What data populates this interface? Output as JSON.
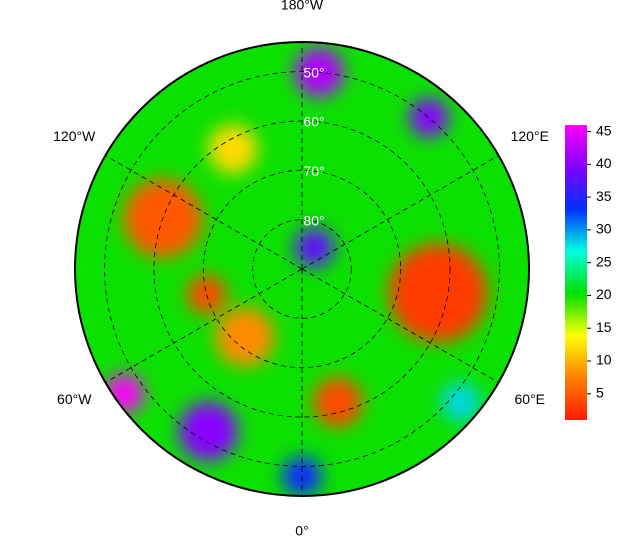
{
  "map": {
    "projection": "north-polar-stereographic",
    "boundary_lat": 44,
    "background_value": 20,
    "field": [
      {
        "lat": 62,
        "lon": 80,
        "radius_deg": 10,
        "value": 3
      },
      {
        "lat": 60,
        "lon": -110,
        "radius_deg": 8,
        "value": 5
      },
      {
        "lat": 72,
        "lon": -40,
        "radius_deg": 6,
        "value": 8
      },
      {
        "lat": 85,
        "lon": 150,
        "radius_deg": 4,
        "value": 38
      },
      {
        "lat": 62,
        "lon": 15,
        "radius_deg": 5,
        "value": 4
      },
      {
        "lat": 52,
        "lon": -30,
        "radius_deg": 6,
        "value": 40
      },
      {
        "lat": 46,
        "lon": -55,
        "radius_deg": 4,
        "value": 46
      },
      {
        "lat": 50,
        "lon": 175,
        "radius_deg": 5,
        "value": 42
      },
      {
        "lat": 62,
        "lon": -150,
        "radius_deg": 5,
        "value": 12
      },
      {
        "lat": 50,
        "lon": 140,
        "radius_deg": 4,
        "value": 40
      },
      {
        "lat": 48,
        "lon": 50,
        "radius_deg": 4,
        "value": 28
      },
      {
        "lat": 70,
        "lon": -75,
        "radius_deg": 4,
        "value": 4
      },
      {
        "lat": 48,
        "lon": 0,
        "radius_deg": 4,
        "value": 34
      }
    ],
    "lat_labels": [
      {
        "lat": 50,
        "label": "50°"
      },
      {
        "lat": 60,
        "label": "60°"
      },
      {
        "lat": 70,
        "label": "70°"
      },
      {
        "lat": 80,
        "label": "80°"
      }
    ],
    "lon_labels": [
      {
        "lon": 180,
        "label": "180°W"
      },
      {
        "lon": 120,
        "label": "120°E"
      },
      {
        "lon": 60,
        "label": "60°E"
      },
      {
        "lon": 0,
        "label": "0°"
      },
      {
        "lon": -60,
        "label": "60°W"
      },
      {
        "lon": -120,
        "label": "120°W"
      }
    ],
    "colorbar": {
      "clim": [
        1,
        46
      ],
      "ticks": [
        5,
        10,
        15,
        20,
        25,
        30,
        35,
        40,
        45
      ],
      "colormap": [
        "#ff1a00",
        "#ff8000",
        "#ffff00",
        "#00e000",
        "#00ffe0",
        "#0030ff",
        "#8000ff",
        "#ff00ff"
      ]
    }
  }
}
